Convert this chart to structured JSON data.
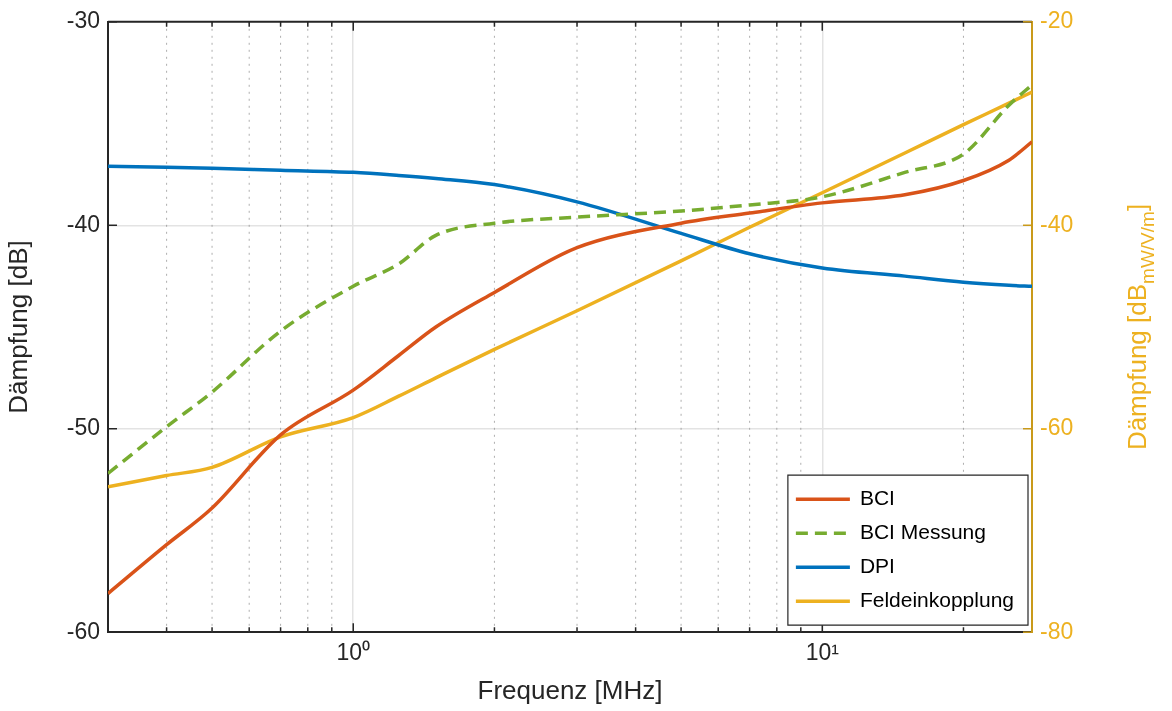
{
  "chart_data": {
    "type": "line",
    "xlabel": "Frequenz [MHz]",
    "ylabel": "Dämpfung [dB]",
    "y2label": "Dämpfung [dB$_{mW/V/m}$]",
    "log": "x",
    "grid": true,
    "legend": "bottom right",
    "marker": "none",
    "xlim": [
      0.3,
      28
    ],
    "xticks": [
      {
        "value": 0.4,
        "label": null
      },
      {
        "value": 0.5,
        "label": null
      },
      {
        "value": 0.6,
        "label": null
      },
      {
        "value": 0.7,
        "label": null
      },
      {
        "value": 0.8,
        "label": null
      },
      {
        "value": 0.9,
        "label": null
      },
      {
        "value": 1,
        "label": "10⁰"
      },
      {
        "value": 2,
        "label": null
      },
      {
        "value": 3,
        "label": null
      },
      {
        "value": 4,
        "label": null
      },
      {
        "value": 5,
        "label": null
      },
      {
        "value": 6,
        "label": null
      },
      {
        "value": 7,
        "label": null
      },
      {
        "value": 8,
        "label": null
      },
      {
        "value": 9,
        "label": null
      },
      {
        "value": 10,
        "label": "10¹"
      },
      {
        "value": 20,
        "label": null
      }
    ],
    "ylim": [
      -60,
      -30
    ],
    "yticks": [
      -60,
      -50,
      -40,
      -30
    ],
    "y2lim": [
      -80,
      -20
    ],
    "y2ticks": [
      -80,
      -60,
      -40,
      -20
    ],
    "x": [
      0.3,
      0.4,
      0.5,
      0.7,
      1,
      1.25,
      1.5,
      2,
      3,
      5,
      7,
      10,
      15,
      20,
      25,
      28
    ],
    "series": [
      {
        "name": "BCI",
        "color": "#d95319",
        "values": [
          -58.1,
          -55.7,
          -53.9,
          -50.3,
          -48.1,
          -46.4,
          -45.0,
          -43.3,
          -41.1,
          -39.9,
          -39.4,
          -38.9,
          -38.5,
          -37.8,
          -36.8,
          -35.9
        ]
      },
      {
        "name": "BCI Messung",
        "color": "#77ac30",
        "line_style": "dashed",
        "values": [
          -52.2,
          -49.9,
          -48.2,
          -45.2,
          -43.0,
          -41.9,
          -40.5,
          -39.9,
          -39.6,
          -39.3,
          -39.0,
          -38.6,
          -37.4,
          -36.5,
          -34.1,
          -33.1
        ]
      },
      {
        "name": "DPI",
        "color": "#0072bd",
        "values": [
          -37.1,
          -37.15,
          -37.2,
          -37.3,
          -37.4,
          -37.55,
          -37.7,
          -38.0,
          -38.85,
          -40.4,
          -41.4,
          -42.1,
          -42.5,
          -42.8,
          -42.95,
          -43.0
        ]
      },
      {
        "name": "Feldeinkopplung",
        "color": "#edb120",
        "axis": "y2",
        "values": [
          -65.7,
          -64.6,
          -63.8,
          -60.8,
          -58.9,
          -56.8,
          -55.0,
          -52.2,
          -48.4,
          -43.5,
          -40.2,
          -36.8,
          -32.9,
          -30.1,
          -28.0,
          -26.9
        ]
      }
    ]
  }
}
